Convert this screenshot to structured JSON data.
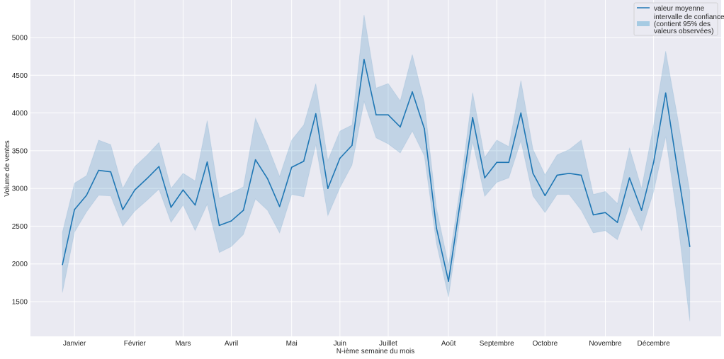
{
  "chart_data": {
    "type": "line",
    "title": "",
    "xlabel": "N-ième semaine du mois",
    "ylabel": "Volume de ventes",
    "xlim": [
      -2.65,
      54.6
    ],
    "ylim": [
      1040,
      5497
    ],
    "grid": true,
    "legend_placement": "top-right",
    "yticks": [
      1500,
      2000,
      2500,
      3000,
      3500,
      4000,
      4500,
      5000
    ],
    "xticks": [
      {
        "week": 1,
        "label": "Janvier"
      },
      {
        "week": 6,
        "label": "Février"
      },
      {
        "week": 10,
        "label": "Mars"
      },
      {
        "week": 14,
        "label": "Avril"
      },
      {
        "week": 19,
        "label": "Mai"
      },
      {
        "week": 23,
        "label": "Juin"
      },
      {
        "week": 27,
        "label": "Juillet"
      },
      {
        "week": 32,
        "label": "Août"
      },
      {
        "week": 36,
        "label": "Septembre"
      },
      {
        "week": 40,
        "label": "Octobre"
      },
      {
        "week": 45,
        "label": "Novembre"
      },
      {
        "week": 49,
        "label": "Décembre"
      }
    ],
    "series": [
      {
        "name": "valeur moyenne",
        "color": "#1f77b4",
        "values": [
          1990,
          2720,
          2910,
          3240,
          3220,
          2720,
          2980,
          3130,
          3290,
          2750,
          2980,
          2780,
          3350,
          2510,
          2570,
          2710,
          3380,
          3130,
          2760,
          3280,
          3360,
          3990,
          3000,
          3400,
          3570,
          4710,
          3975,
          3975,
          3815,
          4280,
          3790,
          2475,
          1770,
          2850,
          3940,
          3140,
          3345,
          3345,
          4000,
          3200,
          2905,
          3175,
          3200,
          3175,
          2650,
          2680,
          2550,
          3140,
          2710,
          3345,
          4265,
          3230,
          2230
        ]
      },
      {
        "name": "intervalle de confiance\n(contient 95% des\nvaleurs observées)",
        "color": "#a6cbe3",
        "lower": [
          1620,
          2420,
          2690,
          2910,
          2900,
          2500,
          2700,
          2840,
          2990,
          2550,
          2780,
          2440,
          2790,
          2150,
          2230,
          2390,
          2860,
          2710,
          2410,
          2920,
          2890,
          3580,
          2640,
          3010,
          3310,
          4150,
          3670,
          3590,
          3470,
          3760,
          3430,
          2270,
          1560,
          2650,
          3620,
          2895,
          3080,
          3140,
          3630,
          2900,
          2680,
          2920,
          2920,
          2710,
          2410,
          2440,
          2320,
          2770,
          2440,
          2955,
          3685,
          2560,
          1240
        ],
        "upper": [
          2420,
          3070,
          3170,
          3640,
          3580,
          3000,
          3290,
          3440,
          3610,
          3000,
          3200,
          3100,
          3900,
          2870,
          2940,
          3020,
          3930,
          3570,
          3160,
          3640,
          3840,
          4390,
          3370,
          3760,
          3840,
          5300,
          4330,
          4390,
          4160,
          4775,
          4135,
          2740,
          1980,
          3050,
          4270,
          3410,
          3640,
          3555,
          4430,
          3520,
          3180,
          3445,
          3515,
          3640,
          2920,
          2960,
          2800,
          3540,
          3000,
          3840,
          4820,
          3930,
          2960
        ]
      }
    ]
  },
  "legend": {
    "mean_label": "valeur moyenne",
    "ci_line1": "intervalle de confiance",
    "ci_line2": "(contient 95% des",
    "ci_line3": "valeurs observées)"
  }
}
